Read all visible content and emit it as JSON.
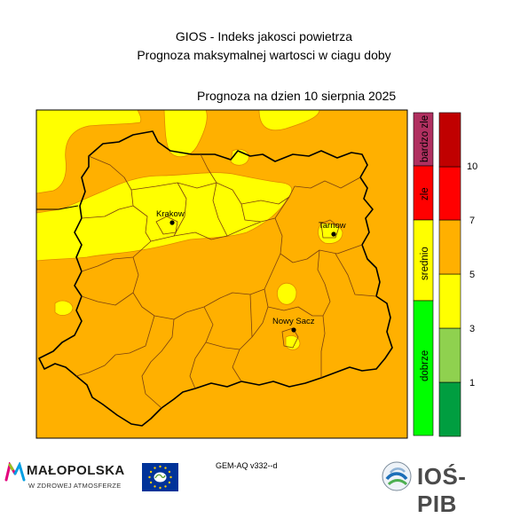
{
  "header": {
    "title_line1": "GIOS - Indeks jakosci powietrza",
    "title_line2": "Prognoza maksymalnej wartosci w ciagu doby",
    "forecast_date": "Prognoza na dzien  10 sierpnia 2025"
  },
  "map": {
    "cities": [
      {
        "name": "Krakow"
      },
      {
        "name": "Tarnow"
      },
      {
        "name": "Nowy Sacz"
      }
    ],
    "fill_colors": {
      "srednio_yellow": "#ffff00",
      "dostateczny_orange": "#ffb000",
      "border": "#000000"
    }
  },
  "legend": {
    "categories": [
      {
        "label": "bardzo zle",
        "color": "#b03060"
      },
      {
        "label": "zle",
        "color": "#ff0000"
      },
      {
        "label": "srednio",
        "color": "#ffff00"
      },
      {
        "label": "dobrze",
        "color": "#00ff00"
      }
    ],
    "scale_colors": [
      "#009e40",
      "#8fd14f",
      "#ffff00",
      "#ffb000",
      "#ff0000",
      "#c00000"
    ],
    "scale_ticks": [
      "1",
      "3",
      "5",
      "7",
      "10"
    ]
  },
  "footer": {
    "model": "GEM-AQ v332--d",
    "logo_malopolska": "MAŁOPOLSKA",
    "logo_malopolska_sub": "W ZDROWEJ ATMOSFERZE",
    "logo_ios": "IOŚ-PIB"
  }
}
